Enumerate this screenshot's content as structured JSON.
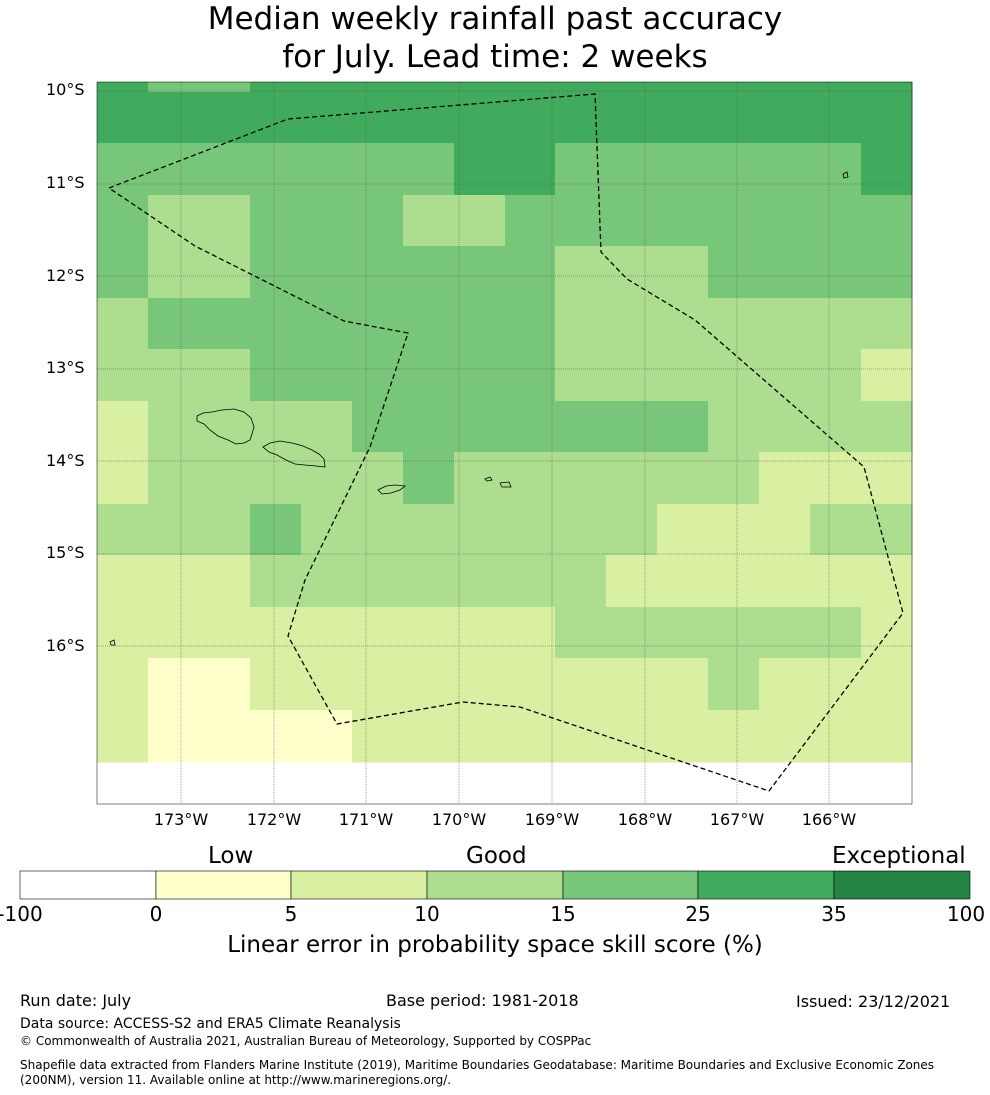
{
  "title": {
    "line1": "Median weekly rainfall past accuracy",
    "line2": "for July. Lead time: 2 weeks"
  },
  "map": {
    "lat_labels": [
      "10°S",
      "11°S",
      "12°S",
      "13°S",
      "14°S",
      "15°S",
      "16°S"
    ],
    "lon_labels": [
      "173°W",
      "172°W",
      "171°W",
      "170°W",
      "169°W",
      "168°W",
      "167°W",
      "166°W"
    ],
    "grid_rows": [
      [
        5,
        4,
        4,
        5,
        5,
        5,
        5,
        5,
        5,
        5,
        5,
        5,
        5,
        5,
        5,
        5
      ],
      [
        5,
        5,
        5,
        5,
        5,
        5,
        5,
        5,
        5,
        5,
        5,
        5,
        5,
        5,
        5,
        5
      ],
      [
        4,
        4,
        4,
        4,
        4,
        4,
        4,
        5,
        5,
        4,
        4,
        4,
        4,
        4,
        4,
        5
      ],
      [
        4,
        3,
        3,
        4,
        4,
        4,
        3,
        3,
        4,
        4,
        4,
        4,
        4,
        4,
        4,
        4
      ],
      [
        4,
        3,
        3,
        4,
        4,
        4,
        4,
        4,
        4,
        3,
        3,
        3,
        4,
        4,
        4,
        4
      ],
      [
        3,
        4,
        4,
        4,
        4,
        4,
        4,
        4,
        4,
        3,
        3,
        3,
        3,
        3,
        3,
        3
      ],
      [
        3,
        3,
        3,
        4,
        4,
        4,
        4,
        4,
        4,
        3,
        3,
        3,
        3,
        3,
        3,
        2
      ],
      [
        2,
        3,
        3,
        3,
        3,
        4,
        4,
        4,
        4,
        4,
        4,
        4,
        3,
        3,
        3,
        3
      ],
      [
        2,
        3,
        3,
        3,
        3,
        3,
        4,
        3,
        3,
        3,
        3,
        3,
        3,
        2,
        2,
        2
      ],
      [
        3,
        3,
        3,
        4,
        3,
        3,
        3,
        3,
        3,
        3,
        3,
        2,
        2,
        2,
        3,
        3
      ],
      [
        2,
        2,
        2,
        3,
        3,
        3,
        3,
        3,
        3,
        3,
        2,
        2,
        2,
        2,
        2,
        2
      ],
      [
        2,
        2,
        2,
        2,
        2,
        2,
        2,
        2,
        2,
        3,
        3,
        3,
        3,
        3,
        3,
        2
      ],
      [
        2,
        1,
        1,
        2,
        2,
        2,
        2,
        2,
        2,
        2,
        2,
        2,
        3,
        2,
        2,
        2
      ],
      [
        2,
        1,
        1,
        1,
        1,
        2,
        2,
        2,
        2,
        2,
        2,
        2,
        2,
        2,
        2,
        2
      ]
    ],
    "colors": [
      "#ffffff",
      "#ffffcc",
      "#d9f0a3",
      "#addd8e",
      "#78c679",
      "#41ab5d",
      "#238443"
    ]
  },
  "legend": {
    "categories": [
      "Low",
      "Good",
      "Exceptional"
    ],
    "ticks": [
      "-100",
      "0",
      "5",
      "10",
      "15",
      "25",
      "35",
      "100"
    ],
    "label": "Linear error in probability space skill score (%)"
  },
  "footer": {
    "run_date": "Run date: July",
    "base_period": "Base period: 1981-2018",
    "issued": "Issued: 23/12/2021",
    "data_source": "Data source: ACCESS-S2 and ERA5 Climate Reanalysis",
    "copyright": "© Commonwealth of Australia 2021, Australian Bureau of Meteorology, Supported by COSPPac",
    "shapefile_line1": "Shapefile data extracted from Flanders Marine Institute (2019), Maritime Boundaries Geodatabase: Maritime Boundaries and Exclusive Economic Zones",
    "shapefile_line2": "(200NM), version 11. Available online at http://www.marineregions.org/."
  }
}
